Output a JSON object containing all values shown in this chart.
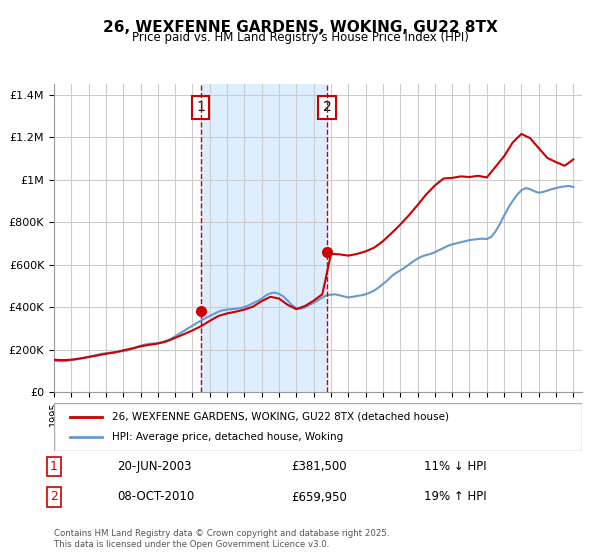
{
  "title": "26, WEXFENNE GARDENS, WOKING, GU22 8TX",
  "subtitle": "Price paid vs. HM Land Registry's House Price Index (HPI)",
  "legend_label_red": "26, WEXFENNE GARDENS, WOKING, GU22 8TX (detached house)",
  "legend_label_blue": "HPI: Average price, detached house, Woking",
  "footer": "Contains HM Land Registry data © Crown copyright and database right 2025.\nThis data is licensed under the Open Government Licence v3.0.",
  "sale1_label": "1",
  "sale1_date": "20-JUN-2003",
  "sale1_price": "£381,500",
  "sale1_hpi": "11% ↓ HPI",
  "sale2_label": "2",
  "sale2_date": "08-OCT-2010",
  "sale2_price": "£659,950",
  "sale2_hpi": "19% ↑ HPI",
  "sale1_year": 2003.47,
  "sale1_value": 381500,
  "sale2_year": 2010.77,
  "sale2_value": 659950,
  "vline1_x": 2003.47,
  "vline2_x": 2010.77,
  "shade_start": 2003.47,
  "shade_end": 2010.77,
  "xmin": 1995,
  "xmax": 2025.5,
  "ymin": 0,
  "ymax": 1450000,
  "red_color": "#cc0000",
  "blue_color": "#6699cc",
  "shade_color": "#ddeeff",
  "grid_color": "#cccccc",
  "background_color": "#ffffff",
  "hpi_data_years": [
    1995.0,
    1995.25,
    1995.5,
    1995.75,
    1996.0,
    1996.25,
    1996.5,
    1996.75,
    1997.0,
    1997.25,
    1997.5,
    1997.75,
    1998.0,
    1998.25,
    1998.5,
    1998.75,
    1999.0,
    1999.25,
    1999.5,
    1999.75,
    2000.0,
    2000.25,
    2000.5,
    2000.75,
    2001.0,
    2001.25,
    2001.5,
    2001.75,
    2002.0,
    2002.25,
    2002.5,
    2002.75,
    2003.0,
    2003.25,
    2003.5,
    2003.75,
    2004.0,
    2004.25,
    2004.5,
    2004.75,
    2005.0,
    2005.25,
    2005.5,
    2005.75,
    2006.0,
    2006.25,
    2006.5,
    2006.75,
    2007.0,
    2007.25,
    2007.5,
    2007.75,
    2008.0,
    2008.25,
    2008.5,
    2008.75,
    2009.0,
    2009.25,
    2009.5,
    2009.75,
    2010.0,
    2010.25,
    2010.5,
    2010.75,
    2011.0,
    2011.25,
    2011.5,
    2011.75,
    2012.0,
    2012.25,
    2012.5,
    2012.75,
    2013.0,
    2013.25,
    2013.5,
    2013.75,
    2014.0,
    2014.25,
    2014.5,
    2014.75,
    2015.0,
    2015.25,
    2015.5,
    2015.75,
    2016.0,
    2016.25,
    2016.5,
    2016.75,
    2017.0,
    2017.25,
    2017.5,
    2017.75,
    2018.0,
    2018.25,
    2018.5,
    2018.75,
    2019.0,
    2019.25,
    2019.5,
    2019.75,
    2020.0,
    2020.25,
    2020.5,
    2020.75,
    2021.0,
    2021.25,
    2021.5,
    2021.75,
    2022.0,
    2022.25,
    2022.5,
    2022.75,
    2023.0,
    2023.25,
    2023.5,
    2023.75,
    2024.0,
    2024.25,
    2024.5,
    2024.75,
    2025.0
  ],
  "hpi_data_values": [
    148000,
    146000,
    145000,
    147000,
    150000,
    153000,
    156000,
    160000,
    165000,
    170000,
    175000,
    180000,
    182000,
    185000,
    188000,
    190000,
    193000,
    196000,
    202000,
    210000,
    218000,
    223000,
    227000,
    228000,
    230000,
    235000,
    242000,
    250000,
    262000,
    275000,
    287000,
    300000,
    312000,
    325000,
    337000,
    348000,
    358000,
    368000,
    378000,
    385000,
    388000,
    390000,
    392000,
    395000,
    400000,
    408000,
    418000,
    428000,
    440000,
    455000,
    465000,
    468000,
    462000,
    450000,
    430000,
    408000,
    395000,
    392000,
    398000,
    410000,
    420000,
    432000,
    445000,
    455000,
    458000,
    460000,
    455000,
    450000,
    445000,
    448000,
    452000,
    455000,
    460000,
    468000,
    478000,
    492000,
    508000,
    525000,
    545000,
    560000,
    572000,
    585000,
    600000,
    615000,
    628000,
    638000,
    645000,
    650000,
    658000,
    668000,
    678000,
    688000,
    695000,
    700000,
    705000,
    710000,
    715000,
    718000,
    720000,
    722000,
    720000,
    730000,
    755000,
    790000,
    830000,
    868000,
    900000,
    928000,
    950000,
    960000,
    955000,
    945000,
    938000,
    942000,
    948000,
    955000,
    960000,
    965000,
    968000,
    970000,
    965000
  ],
  "red_data_years": [
    1995.0,
    1995.5,
    1996.0,
    1996.5,
    1997.0,
    1997.5,
    1998.0,
    1998.5,
    1999.0,
    1999.5,
    2000.0,
    2000.5,
    2001.0,
    2001.5,
    2002.0,
    2002.5,
    2003.0,
    2003.5,
    2004.0,
    2004.5,
    2005.0,
    2005.5,
    2006.0,
    2006.5,
    2007.0,
    2007.5,
    2008.0,
    2008.5,
    2009.0,
    2009.5,
    2010.0,
    2010.5,
    2011.0,
    2011.5,
    2012.0,
    2012.5,
    2013.0,
    2013.5,
    2014.0,
    2014.5,
    2015.0,
    2015.5,
    2016.0,
    2016.5,
    2017.0,
    2017.5,
    2018.0,
    2018.5,
    2019.0,
    2019.5,
    2020.0,
    2020.5,
    2021.0,
    2021.5,
    2022.0,
    2022.5,
    2023.0,
    2023.5,
    2024.0,
    2024.5,
    2025.0
  ],
  "red_data_values": [
    152000,
    150000,
    152000,
    158000,
    165000,
    172000,
    180000,
    186000,
    196000,
    205000,
    215000,
    222000,
    228000,
    238000,
    255000,
    272000,
    290000,
    310000,
    335000,
    358000,
    370000,
    378000,
    388000,
    402000,
    428000,
    448000,
    440000,
    410000,
    390000,
    405000,
    430000,
    460000,
    650000,
    648000,
    642000,
    650000,
    662000,
    680000,
    710000,
    748000,
    788000,
    832000,
    880000,
    930000,
    972000,
    1005000,
    1008000,
    1015000,
    1012000,
    1018000,
    1010000,
    1060000,
    1110000,
    1175000,
    1215000,
    1195000,
    1148000,
    1102000,
    1082000,
    1065000,
    1095000
  ]
}
